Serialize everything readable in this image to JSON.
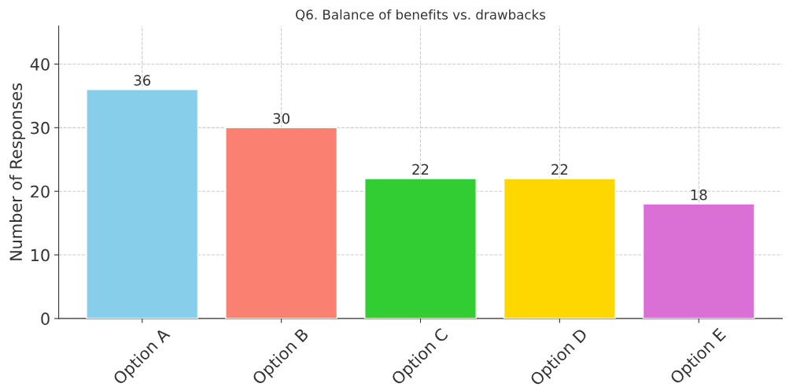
{
  "chart_data": {
    "type": "bar",
    "title": "Q6. Balance of benefits vs. drawbacks",
    "ylabel": "Number of Responses",
    "categories": [
      "Option A",
      "Option B",
      "Option C",
      "Option D",
      "Option E"
    ],
    "values": [
      36,
      30,
      22,
      22,
      18
    ],
    "colors": [
      "#87ceeb",
      "#fa8072",
      "#32cd32",
      "#ffd700",
      "#da70d6"
    ],
    "ylim": [
      0,
      46
    ],
    "yticks": [
      0,
      10,
      20,
      30,
      40
    ],
    "grid": true,
    "data_labels": true
  }
}
